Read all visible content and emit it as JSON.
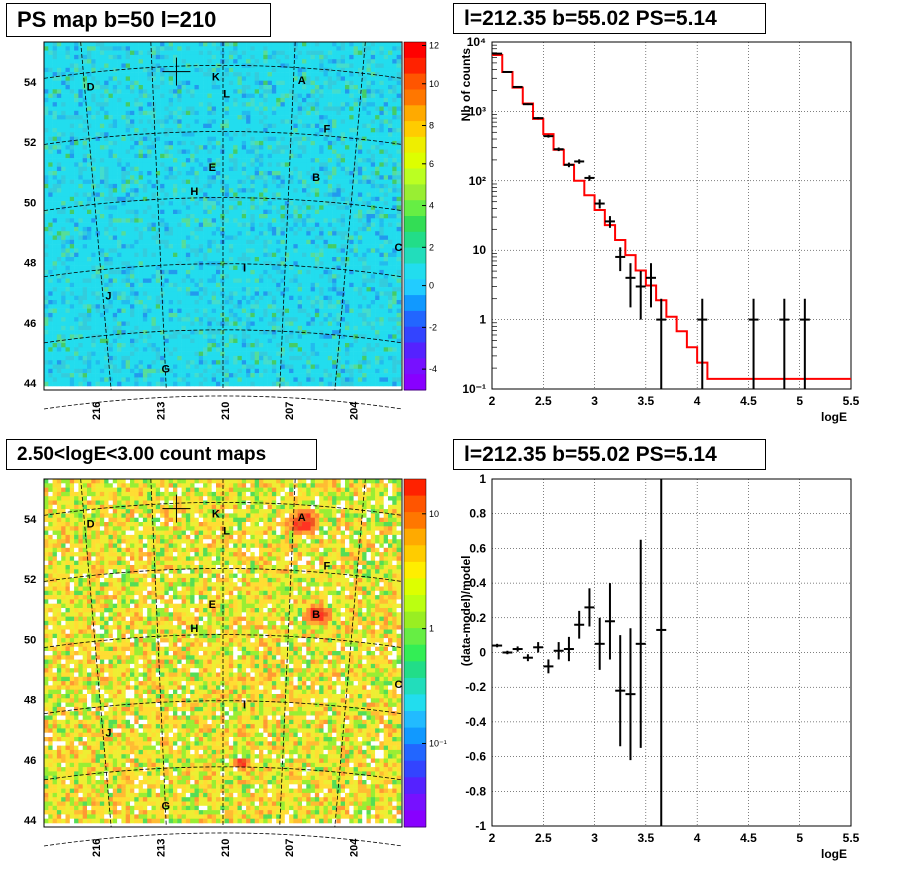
{
  "panels": {
    "ps_map_title": "PS map b=50 l=210",
    "count_map_title": "2.50<logE<3.00 count maps",
    "spectrum_title": "l=212.35 b=55.02 PS=5.14",
    "residual_title": "l=212.35 b=55.02 PS=5.14"
  },
  "map_axes": {
    "lat_ticks": [
      "54",
      "52",
      "50",
      "48",
      "46",
      "44"
    ],
    "lon_ticks": [
      "216",
      "213",
      "210",
      "207",
      "204"
    ],
    "source_labels": [
      "A",
      "B",
      "C",
      "D",
      "E",
      "F",
      "G",
      "H",
      "I",
      "J",
      "K",
      "L"
    ]
  },
  "colors": {
    "model_line": "#ff0000",
    "data_points": "#000000",
    "grid": "#000000"
  },
  "chart_data": [
    {
      "type": "heatmap",
      "title": "PS map b=50 l=210",
      "xlabel": "",
      "ylabel": "",
      "colorbar_ticks": [
        "12",
        "10",
        "8",
        "6",
        "4",
        "2",
        "0",
        "-2",
        "-4"
      ],
      "colorbar_range": [
        -5,
        12
      ]
    },
    {
      "type": "line",
      "title": "l=212.35 b=55.02 PS=5.14",
      "xlabel": "logE",
      "ylabel": "Nb of counts",
      "xlim": [
        2,
        5.5
      ],
      "ylim": [
        0.1,
        10000
      ],
      "yscale": "log",
      "x_ticks": [
        "2",
        "2.5",
        "3",
        "3.5",
        "4",
        "4.5",
        "5",
        "5.5"
      ],
      "y_ticks": [
        "10⁻¹",
        "1",
        "10",
        "10²",
        "10³",
        "10⁴"
      ],
      "grid": true,
      "series": [
        {
          "style": "step",
          "x": [
            2.0,
            2.1,
            2.2,
            2.3,
            2.4,
            2.5,
            2.6,
            2.7,
            2.8,
            2.9,
            3.0,
            3.1,
            3.2,
            3.3,
            3.4,
            3.5,
            3.6,
            3.7,
            3.8,
            3.9,
            4.0,
            4.1,
            5.5
          ],
          "y": [
            6500,
            3700,
            2200,
            1300,
            780,
            470,
            280,
            170,
            100,
            62,
            38,
            23,
            14,
            8.5,
            5.1,
            3.1,
            1.9,
            1.1,
            0.68,
            0.4,
            0.24,
            0.14,
            0.1
          ]
        },
        {
          "style": "errorbars",
          "x": [
            2.05,
            2.15,
            2.25,
            2.35,
            2.45,
            2.55,
            2.65,
            2.75,
            2.85,
            2.95,
            3.05,
            3.15,
            3.25,
            3.35,
            3.45,
            3.55,
            3.65,
            4.05,
            4.55,
            4.85,
            5.05
          ],
          "y": [
            6800,
            3700,
            2250,
            1270,
            800,
            440,
            285,
            170,
            190,
            110,
            47,
            26,
            8,
            4,
            3,
            4,
            1,
            1,
            1,
            1,
            1
          ],
          "y_err_low": [
            100,
            60,
            50,
            35,
            28,
            21,
            17,
            13,
            14,
            10,
            7,
            5,
            3,
            2.5,
            2,
            2.5,
            0.99,
            0.99,
            0.99,
            0.99,
            0.99
          ],
          "y_err_high": [
            100,
            60,
            50,
            35,
            28,
            21,
            17,
            13,
            14,
            10,
            7,
            5,
            3,
            2.5,
            2,
            2.5,
            1,
            1,
            1,
            1,
            1
          ]
        }
      ]
    },
    {
      "type": "scatter",
      "title": "l=212.35 b=55.02 PS=5.14",
      "xlabel": "logE",
      "ylabel": "(data-model)/model",
      "xlim": [
        2,
        5.5
      ],
      "ylim": [
        -1,
        1
      ],
      "x_ticks": [
        "2",
        "2.5",
        "3",
        "3.5",
        "4",
        "4.5",
        "5",
        "5.5"
      ],
      "y_ticks": [
        "1",
        "0.8",
        "0.6",
        "0.4",
        "0.2",
        "0",
        "-0.2",
        "-0.4",
        "-0.6",
        "-0.8",
        "-1"
      ],
      "grid": true,
      "series": [
        {
          "x": [
            2.05,
            2.15,
            2.25,
            2.35,
            2.45,
            2.55,
            2.65,
            2.75,
            2.85,
            2.95,
            3.05,
            3.15,
            3.25,
            3.35,
            3.45,
            3.65
          ],
          "y": [
            0.04,
            0.0,
            0.02,
            -0.03,
            0.03,
            -0.08,
            0.01,
            0.02,
            0.16,
            0.26,
            0.05,
            0.18,
            -0.22,
            -0.24,
            0.05,
            0.13
          ],
          "y_err": [
            0.01,
            0.01,
            0.015,
            0.02,
            0.03,
            0.04,
            0.05,
            0.07,
            0.08,
            0.11,
            0.15,
            0.22,
            0.32,
            0.38,
            0.6,
            1.2
          ]
        }
      ]
    },
    {
      "type": "heatmap",
      "title": "2.50<logE<3.00 count maps",
      "xlabel": "",
      "ylabel": "",
      "zscale": "log",
      "colorbar_ticks": [
        "10",
        "1",
        "10⁻¹"
      ]
    }
  ]
}
